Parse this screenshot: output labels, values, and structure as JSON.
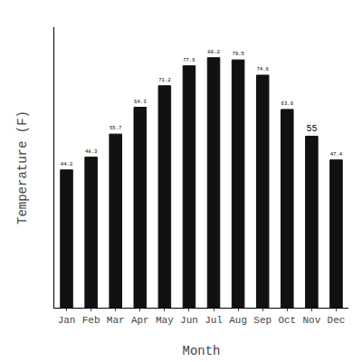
{
  "chart_data": {
    "type": "bar",
    "categories": [
      "Jan",
      "Feb",
      "Mar",
      "Apr",
      "May",
      "Jun",
      "Jul",
      "Aug",
      "Sep",
      "Oct",
      "Nov",
      "Dec"
    ],
    "values": [
      44.2,
      48.3,
      55.7,
      64.3,
      71.2,
      77.6,
      80.2,
      79.5,
      74.6,
      63.6,
      55.0,
      47.4
    ],
    "color": "#111111",
    "xlabel": "Month",
    "ylabel": "Temperature (F)",
    "ylim": [
      0,
      90
    ],
    "yticks": [],
    "grid": false,
    "data_labels": true,
    "tick_labels": "x"
  }
}
